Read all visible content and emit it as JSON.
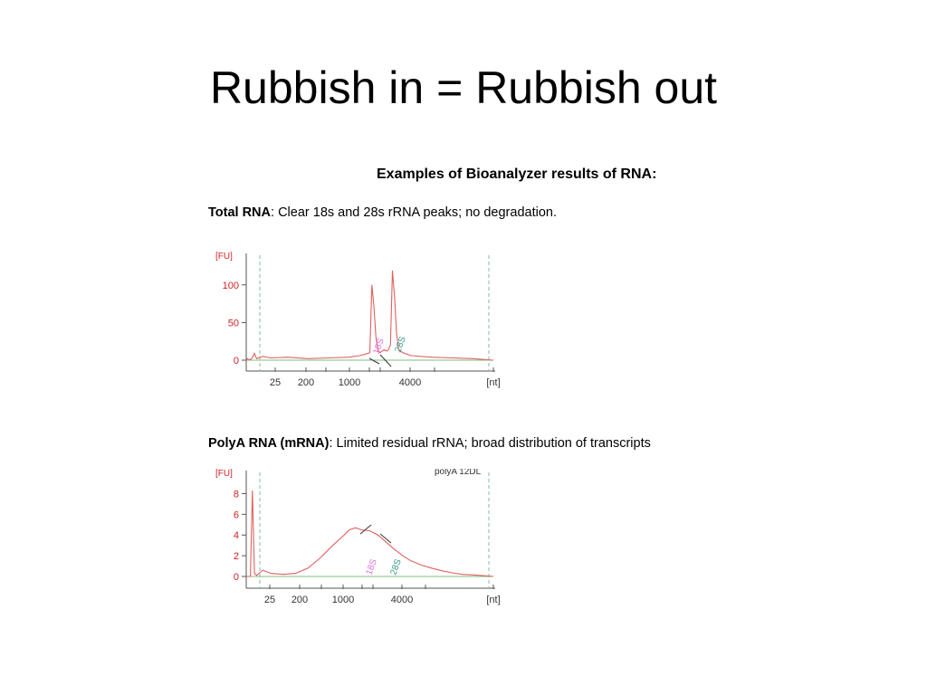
{
  "slide": {
    "title": "Rubbish in = Rubbish out"
  },
  "figure": {
    "heading": "Examples of Bioanalyzer results of RNA:",
    "total_caption_label": "Total RNA",
    "total_caption_text": ":  Clear 18s and 28s rRNA peaks; no degradation.",
    "polya_caption_label": "PolyA RNA (mRNA)",
    "polya_caption_text": ":  Limited residual rRNA; broad distribution of transcripts"
  },
  "colors": {
    "trace": "#e06060",
    "axis": "#555555",
    "baseline": "#7fbf7f",
    "marker_dashed": "#7fbf9f",
    "label_18s": "#e070e0",
    "label_28s": "#3a9a8a",
    "ytick_text": "#cc2222"
  },
  "chart_data": [
    {
      "type": "line",
      "name": "Total RNA",
      "ylabel": "[FU]",
      "ylim": [
        0,
        125
      ],
      "yticks": [
        0,
        50,
        100
      ],
      "x_tick_labels": [
        "25",
        "200",
        "1000",
        "4000",
        "[nt]"
      ],
      "peak_labels": [
        "18S",
        "28S"
      ],
      "series_points": [
        [
          0,
          0
        ],
        [
          0.5,
          2
        ],
        [
          1,
          1
        ],
        [
          2,
          1
        ],
        [
          3,
          3
        ],
        [
          4,
          9
        ],
        [
          5,
          2
        ],
        [
          8,
          5
        ],
        [
          12,
          3
        ],
        [
          20,
          4
        ],
        [
          30,
          2
        ],
        [
          40,
          3
        ],
        [
          50,
          4
        ],
        [
          55,
          6
        ],
        [
          58,
          8
        ],
        [
          60,
          10
        ],
        [
          61,
          100
        ],
        [
          62,
          70
        ],
        [
          63,
          30
        ],
        [
          64,
          12
        ],
        [
          65,
          10
        ],
        [
          66,
          12
        ],
        [
          67,
          14
        ],
        [
          68,
          12
        ],
        [
          69,
          14
        ],
        [
          70,
          20
        ],
        [
          71,
          119
        ],
        [
          72,
          85
        ],
        [
          73,
          35
        ],
        [
          74,
          14
        ],
        [
          75,
          12
        ],
        [
          76,
          10
        ],
        [
          80,
          6
        ],
        [
          90,
          4
        ],
        [
          100,
          3
        ],
        [
          110,
          2
        ],
        [
          115,
          1
        ],
        [
          120,
          0
        ]
      ]
    },
    {
      "type": "line",
      "name": "PolyA RNA (mRNA)",
      "ylabel": "[FU]",
      "ylim": [
        0,
        9
      ],
      "yticks": [
        0,
        2,
        4,
        6,
        8
      ],
      "sample_label": "polyA 12DL",
      "x_tick_labels": [
        "25",
        "200",
        "1000",
        "4000",
        "[nt]"
      ],
      "peak_labels": [
        "18S",
        "28S"
      ],
      "series_points": [
        [
          0,
          0
        ],
        [
          2,
          0
        ],
        [
          3,
          8.3
        ],
        [
          4,
          0.3
        ],
        [
          5,
          0.1
        ],
        [
          8,
          0.6
        ],
        [
          12,
          0.3
        ],
        [
          18,
          0.2
        ],
        [
          24,
          0.3
        ],
        [
          30,
          0.8
        ],
        [
          36,
          1.8
        ],
        [
          42,
          3
        ],
        [
          47,
          3.9
        ],
        [
          50,
          4.5
        ],
        [
          53,
          4.7
        ],
        [
          56,
          4.5
        ],
        [
          60,
          4.4
        ],
        [
          64,
          4
        ],
        [
          68,
          3.3
        ],
        [
          72,
          2.6
        ],
        [
          76,
          2
        ],
        [
          80,
          1.5
        ],
        [
          85,
          1.1
        ],
        [
          90,
          0.8
        ],
        [
          95,
          0.55
        ],
        [
          100,
          0.35
        ],
        [
          105,
          0.2
        ],
        [
          110,
          0.15
        ],
        [
          115,
          0.08
        ],
        [
          120,
          0
        ]
      ]
    }
  ]
}
